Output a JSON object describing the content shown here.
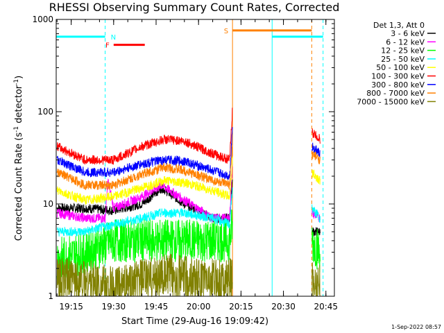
{
  "chart_data": {
    "type": "line",
    "title": "RHESSI Observing Summary Count Rates, Corrected",
    "xlabel": "Start Time (29-Aug-16 19:09:42)",
    "ylabel": "Corrected Count Rate (s",
    "ylabel_sup1": "-1",
    "ylabel_mid": " detector",
    "ylabel_sup2": "-1",
    "ylabel_end": ")",
    "yscale": "log",
    "ylim": [
      1,
      1000
    ],
    "yticks": [
      {
        "value": 1,
        "label": "1"
      },
      {
        "value": 10,
        "label": "10"
      },
      {
        "value": 100,
        "label": "100"
      },
      {
        "value": 1000,
        "label": "1000"
      }
    ],
    "xlim": [
      "19:09:42",
      "20:48"
    ],
    "xticks": [
      "19:15",
      "19:30",
      "19:45",
      "20:00",
      "20:15",
      "20:30",
      "20:45"
    ],
    "grid": false,
    "legend_placement": "right",
    "legend_title": "Det 1,3, Att 0",
    "timestamp": "1-Sep-2022 08:57",
    "series": [
      {
        "name": "3 - 6 keV",
        "color": "#000000",
        "points": [
          [
            "19:10",
            9
          ],
          [
            "19:20",
            9
          ],
          [
            "19:30",
            8.5
          ],
          [
            "19:40",
            10
          ],
          [
            "19:47",
            15
          ],
          [
            "19:55",
            10
          ],
          [
            "20:05",
            7
          ],
          [
            "20:11",
            7
          ],
          [
            "20:12",
            20
          ],
          [
            "20:40",
            5
          ],
          [
            "20:43",
            5
          ]
        ]
      },
      {
        "name": "6 - 12 keV",
        "color": "#ff00ff",
        "points": [
          [
            "19:10",
            8
          ],
          [
            "19:20",
            7
          ],
          [
            "19:27",
            7
          ],
          [
            "19:28",
            18
          ],
          [
            "19:30",
            9
          ],
          [
            "19:40",
            12
          ],
          [
            "19:47",
            16
          ],
          [
            "19:55",
            11
          ],
          [
            "20:05",
            7
          ],
          [
            "20:11",
            7
          ],
          [
            "20:12",
            30
          ],
          [
            "20:40",
            8
          ],
          [
            "20:43",
            7
          ]
        ]
      },
      {
        "name": "12 - 25 keV",
        "color": "#00ff00",
        "points": [
          [
            "19:10",
            2.5
          ],
          [
            "19:20",
            3
          ],
          [
            "19:30",
            4
          ],
          [
            "19:40",
            4
          ],
          [
            "19:50",
            4
          ],
          [
            "20:00",
            4
          ],
          [
            "20:11",
            4
          ],
          [
            "20:12",
            6
          ],
          [
            "20:40",
            4
          ],
          [
            "20:43",
            3
          ]
        ]
      },
      {
        "name": "25 - 50 keV",
        "color": "#00ffff",
        "points": [
          [
            "19:10",
            5
          ],
          [
            "19:20",
            5
          ],
          [
            "19:30",
            6
          ],
          [
            "19:40",
            7
          ],
          [
            "19:47",
            8
          ],
          [
            "19:55",
            8
          ],
          [
            "20:05",
            7
          ],
          [
            "20:11",
            6
          ],
          [
            "20:12",
            15
          ],
          [
            "20:40",
            9
          ],
          [
            "20:43",
            7
          ]
        ]
      },
      {
        "name": "50 - 100 keV",
        "color": "#ffff00",
        "points": [
          [
            "19:10",
            14
          ],
          [
            "19:20",
            11
          ],
          [
            "19:30",
            12
          ],
          [
            "19:40",
            15
          ],
          [
            "19:48",
            18
          ],
          [
            "19:55",
            17
          ],
          [
            "20:05",
            14
          ],
          [
            "20:11",
            12
          ],
          [
            "20:12",
            30
          ],
          [
            "20:40",
            22
          ],
          [
            "20:43",
            18
          ]
        ]
      },
      {
        "name": "100 - 300 keV",
        "color": "#ff0000",
        "points": [
          [
            "19:10",
            42
          ],
          [
            "19:20",
            30
          ],
          [
            "19:30",
            30
          ],
          [
            "19:40",
            42
          ],
          [
            "19:48",
            50
          ],
          [
            "19:55",
            48
          ],
          [
            "20:05",
            35
          ],
          [
            "20:11",
            30
          ],
          [
            "20:12",
            110
          ],
          [
            "20:40",
            60
          ],
          [
            "20:43",
            50
          ]
        ]
      },
      {
        "name": "300 - 800 keV",
        "color": "#0000ff",
        "points": [
          [
            "19:10",
            30
          ],
          [
            "19:20",
            22
          ],
          [
            "19:30",
            22
          ],
          [
            "19:40",
            27
          ],
          [
            "19:48",
            30
          ],
          [
            "19:55",
            29
          ],
          [
            "20:05",
            23
          ],
          [
            "20:11",
            20
          ],
          [
            "20:12",
            70
          ],
          [
            "20:40",
            42
          ],
          [
            "20:43",
            35
          ]
        ]
      },
      {
        "name": "800 - 7000 keV",
        "color": "#ff8000",
        "points": [
          [
            "19:10",
            22
          ],
          [
            "19:20",
            16
          ],
          [
            "19:30",
            16
          ],
          [
            "19:40",
            21
          ],
          [
            "19:48",
            25
          ],
          [
            "19:55",
            23
          ],
          [
            "20:05",
            18
          ],
          [
            "20:11",
            16
          ],
          [
            "20:12",
            45
          ],
          [
            "20:40",
            35
          ],
          [
            "20:43",
            30
          ]
        ]
      },
      {
        "name": "7000 - 15000 keV",
        "color": "#808000",
        "points": [
          [
            "19:10",
            1.5
          ],
          [
            "19:20",
            1.5
          ],
          [
            "19:30",
            1.2
          ],
          [
            "19:40",
            1.5
          ],
          [
            "19:50",
            1.7
          ],
          [
            "20:00",
            1.5
          ],
          [
            "20:11",
            1.5
          ],
          [
            "20:40",
            1.5
          ],
          [
            "20:43",
            1.3
          ]
        ]
      }
    ],
    "flags": [
      {
        "label": "N",
        "color": "#00ffff",
        "value": 650,
        "start": "19:09:42",
        "end": "19:27"
      },
      {
        "label": "F",
        "color": "#ff0000",
        "value": 530,
        "start": "19:30",
        "end": "19:41"
      },
      {
        "label": "",
        "color": "#00ffff",
        "value": 650,
        "start": "20:26",
        "end": "20:44"
      },
      {
        "label": "S",
        "color": "#ff8000",
        "value": 760,
        "start": "20:12",
        "end": "20:40"
      }
    ],
    "markers": [
      {
        "time": "20:12",
        "color": "#ff8000",
        "style": "solid"
      },
      {
        "time": "20:26",
        "color": "#00ffff",
        "style": "solid"
      },
      {
        "time": "19:27",
        "color": "#00ffff",
        "style": "dashed"
      },
      {
        "time": "20:40",
        "color": "#ff8000",
        "style": "dashed"
      },
      {
        "time": "20:44",
        "color": "#00ffff",
        "style": "dashed"
      }
    ]
  }
}
